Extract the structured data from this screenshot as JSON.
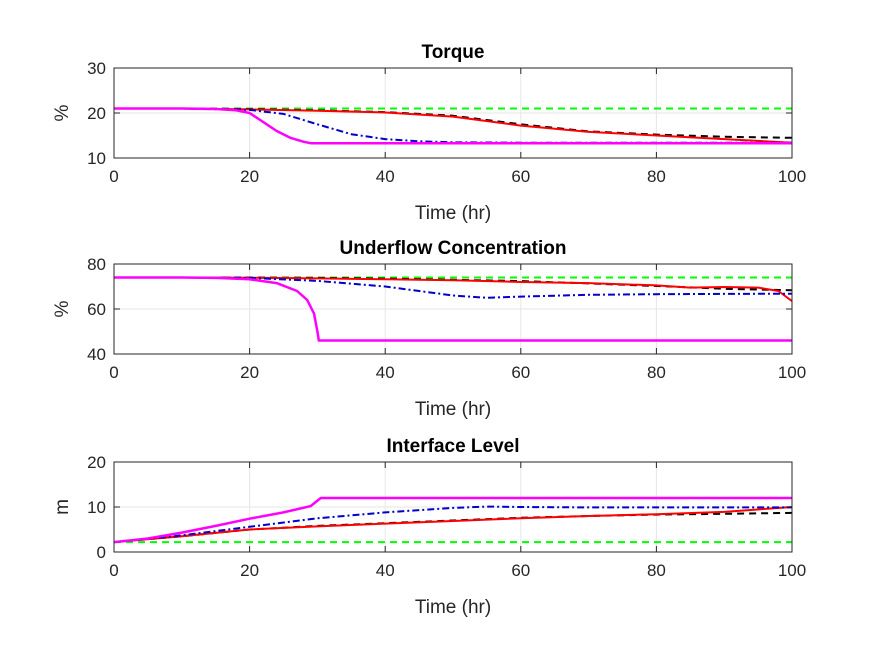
{
  "chart_data": [
    {
      "type": "line",
      "title": "Torque",
      "xlabel": "Time (hr)",
      "ylabel": "%",
      "xlim": [
        0,
        100
      ],
      "ylim": [
        10,
        30
      ],
      "xticks": [
        0,
        20,
        40,
        60,
        80,
        100
      ],
      "yticks": [
        10,
        20,
        30
      ],
      "grid": true,
      "series": [
        {
          "color": "#00ff00",
          "style": "dashed",
          "x": [
            0,
            100
          ],
          "y": [
            21,
            21
          ]
        },
        {
          "color": "#000000",
          "style": "dashed",
          "x": [
            0,
            10,
            20,
            30,
            40,
            50,
            60,
            70,
            80,
            90,
            100
          ],
          "y": [
            21,
            21,
            20.9,
            20.6,
            20.2,
            19.4,
            17.5,
            15.9,
            15.2,
            14.7,
            14.5
          ]
        },
        {
          "color": "#ff0000",
          "style": "solid",
          "x": [
            0,
            10,
            20,
            30,
            40,
            50,
            60,
            70,
            80,
            90,
            100
          ],
          "y": [
            21,
            21,
            20.8,
            20.5,
            20.1,
            19.2,
            17.2,
            15.8,
            15.0,
            14.2,
            13.4
          ]
        },
        {
          "color": "#0000cc",
          "style": "dashdot",
          "x": [
            0,
            10,
            20,
            25,
            30,
            35,
            40,
            45,
            50,
            60,
            80,
            100
          ],
          "y": [
            21,
            21,
            20.7,
            19.8,
            17.5,
            15.3,
            14.2,
            13.7,
            13.5,
            13.4,
            13.4,
            13.4
          ]
        },
        {
          "color": "#ff00ff",
          "style": "solid",
          "x": [
            0,
            10,
            15,
            18,
            20,
            22,
            24,
            26,
            28,
            29,
            30,
            40,
            100
          ],
          "y": [
            21,
            21,
            20.9,
            20.6,
            20.0,
            18.0,
            16.0,
            14.5,
            13.6,
            13.3,
            13.3,
            13.3,
            13.3
          ]
        }
      ]
    },
    {
      "type": "line",
      "title": "Underflow Concentration",
      "xlabel": "Time (hr)",
      "ylabel": "%",
      "xlim": [
        0,
        100
      ],
      "ylim": [
        40,
        80
      ],
      "xticks": [
        0,
        20,
        40,
        60,
        80,
        100
      ],
      "yticks": [
        40,
        60,
        80
      ],
      "grid": true,
      "series": [
        {
          "color": "#00ff00",
          "style": "dashed",
          "x": [
            0,
            100
          ],
          "y": [
            74,
            74
          ]
        },
        {
          "color": "#000000",
          "style": "dashed",
          "x": [
            0,
            10,
            20,
            30,
            40,
            50,
            60,
            70,
            80,
            90,
            100
          ],
          "y": [
            74,
            74,
            74,
            73.8,
            73.5,
            73,
            72.4,
            71.4,
            70.2,
            69,
            68.3
          ]
        },
        {
          "color": "#ff0000",
          "style": "solid",
          "x": [
            0,
            10,
            20,
            30,
            40,
            50,
            60,
            70,
            80,
            85,
            90,
            95,
            98,
            100
          ],
          "y": [
            74,
            74,
            73.9,
            73.6,
            73.2,
            72.8,
            72,
            71.5,
            70.5,
            69.5,
            69.8,
            69.5,
            68,
            63.5
          ]
        },
        {
          "color": "#0000cc",
          "style": "dashdot",
          "x": [
            0,
            10,
            20,
            30,
            40,
            45,
            50,
            55,
            60,
            70,
            80,
            90,
            100
          ],
          "y": [
            74,
            74,
            73.8,
            72.5,
            70,
            68,
            66,
            65,
            65.5,
            66.3,
            66.6,
            66.7,
            66.8
          ]
        },
        {
          "color": "#ff00ff",
          "style": "solid",
          "x": [
            0,
            10,
            15,
            20,
            24,
            27,
            28.5,
            29.5,
            30,
            30.2,
            31,
            40,
            100
          ],
          "y": [
            74,
            74,
            73.8,
            73.2,
            71.5,
            68,
            64,
            58,
            50,
            46,
            46,
            46,
            46
          ]
        }
      ]
    },
    {
      "type": "line",
      "title": "Interface Level",
      "xlabel": "Time (hr)",
      "ylabel": "m",
      "xlim": [
        0,
        100
      ],
      "ylim": [
        0,
        20
      ],
      "xticks": [
        0,
        20,
        40,
        60,
        80,
        100
      ],
      "yticks": [
        0,
        10,
        20
      ],
      "grid": true,
      "series": [
        {
          "color": "#00ff00",
          "style": "dashed",
          "x": [
            0,
            100
          ],
          "y": [
            2.2,
            2.2
          ]
        },
        {
          "color": "#000000",
          "style": "dashed",
          "x": [
            0,
            10,
            20,
            30,
            40,
            50,
            60,
            70,
            80,
            90,
            100
          ],
          "y": [
            2.2,
            3.5,
            5,
            5.8,
            6.4,
            7,
            7.6,
            8,
            8.3,
            8.5,
            8.7
          ]
        },
        {
          "color": "#ff0000",
          "style": "solid",
          "x": [
            0,
            10,
            20,
            30,
            40,
            50,
            60,
            70,
            80,
            90,
            100
          ],
          "y": [
            2.2,
            3.5,
            5,
            5.7,
            6.3,
            6.9,
            7.5,
            8,
            8.4,
            8.9,
            10
          ]
        },
        {
          "color": "#0000cc",
          "style": "dashdot",
          "x": [
            0,
            10,
            20,
            30,
            40,
            50,
            55,
            60,
            70,
            80,
            90,
            100
          ],
          "y": [
            2.2,
            3.7,
            5.6,
            7.5,
            8.8,
            9.8,
            10.1,
            10,
            9.9,
            9.9,
            9.9,
            9.9
          ]
        },
        {
          "color": "#ff00ff",
          "style": "solid",
          "x": [
            0,
            5,
            10,
            15,
            20,
            25,
            29,
            30.5,
            31,
            40,
            100
          ],
          "y": [
            2.2,
            3,
            4.3,
            5.8,
            7.4,
            8.8,
            10.2,
            12,
            12,
            12,
            12
          ]
        }
      ]
    }
  ]
}
